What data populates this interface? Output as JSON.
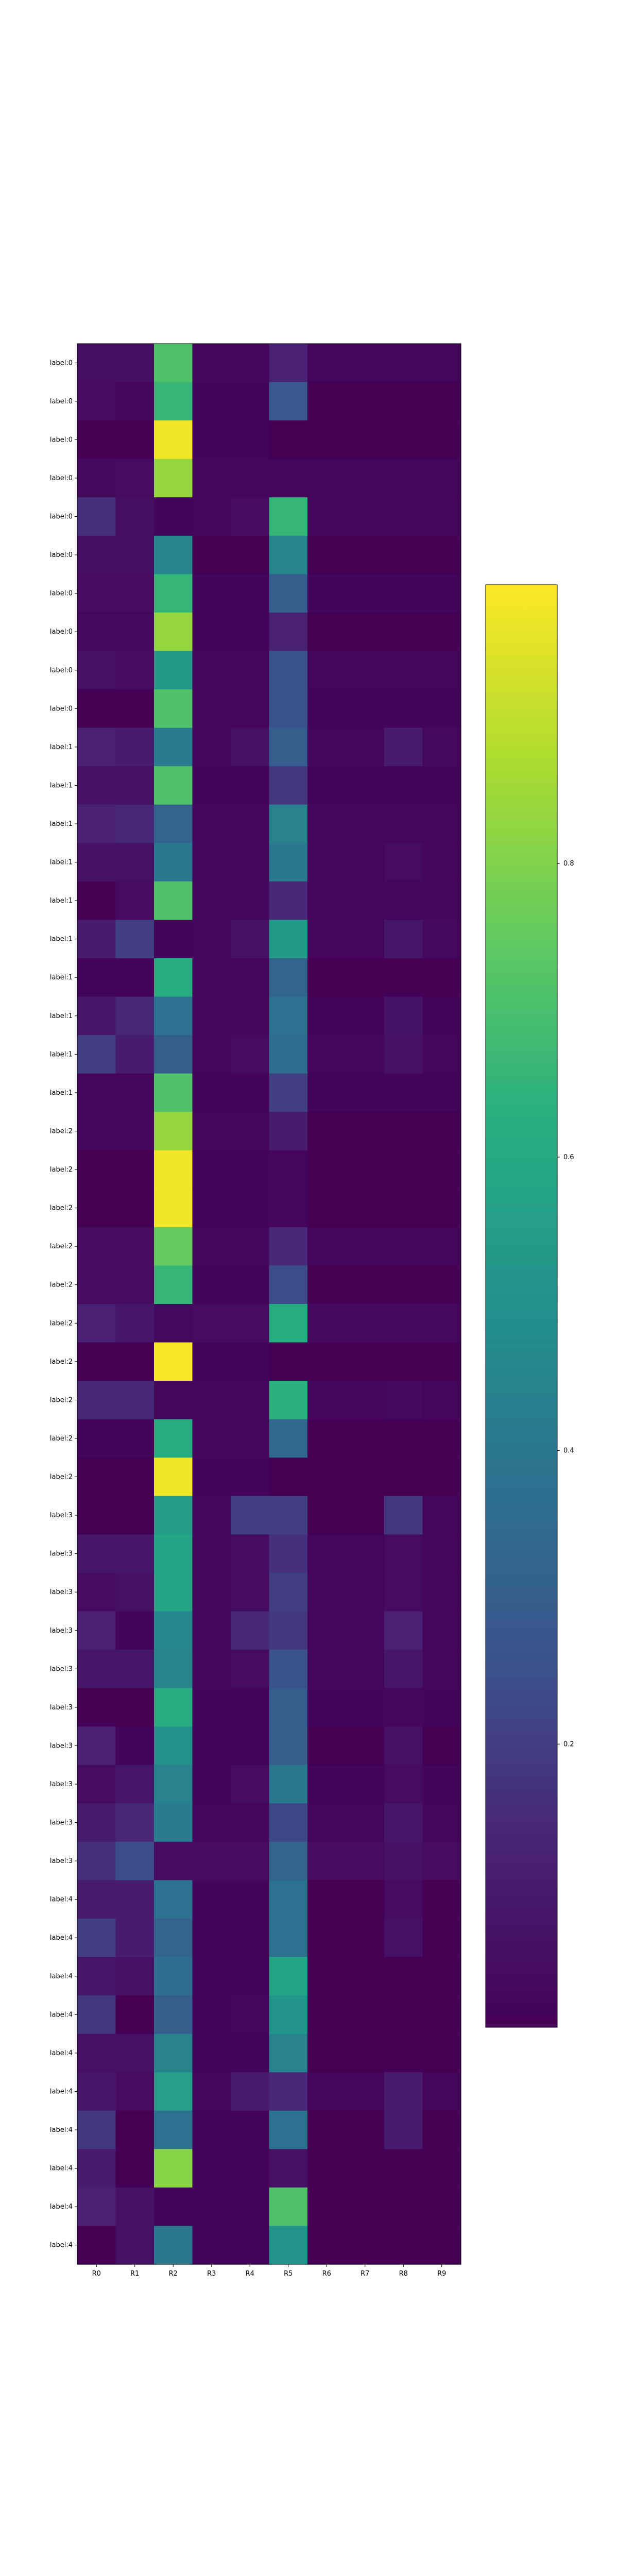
{
  "chart_data": {
    "type": "heatmap",
    "colormap": "viridis",
    "columns": [
      "R0",
      "R1",
      "R2",
      "R3",
      "R4",
      "R5",
      "R6",
      "R7",
      "R8",
      "R9"
    ],
    "row_labels": [
      "label:0",
      "label:0",
      "label:0",
      "label:0",
      "label:0",
      "label:0",
      "label:0",
      "label:0",
      "label:0",
      "label:0",
      "label:1",
      "label:1",
      "label:1",
      "label:1",
      "label:1",
      "label:1",
      "label:1",
      "label:1",
      "label:1",
      "label:1",
      "label:2",
      "label:2",
      "label:2",
      "label:2",
      "label:2",
      "label:2",
      "label:2",
      "label:2",
      "label:2",
      "label:2",
      "label:3",
      "label:3",
      "label:3",
      "label:3",
      "label:3",
      "label:3",
      "label:3",
      "label:3",
      "label:3",
      "label:3",
      "label:4",
      "label:4",
      "label:4",
      "label:4",
      "label:4",
      "label:4",
      "label:4",
      "label:4",
      "label:4",
      "label:4"
    ],
    "values": [
      [
        0.05,
        0.05,
        0.72,
        0.02,
        0.02,
        0.12,
        0.02,
        0.02,
        0.02,
        0.02
      ],
      [
        0.04,
        0.02,
        0.66,
        0.01,
        0.01,
        0.28,
        0.0,
        0.0,
        0.0,
        0.0
      ],
      [
        0.0,
        0.0,
        0.98,
        0.01,
        0.01,
        0.0,
        0.0,
        0.0,
        0.0,
        0.0
      ],
      [
        0.03,
        0.04,
        0.84,
        0.02,
        0.02,
        0.02,
        0.02,
        0.02,
        0.02,
        0.02
      ],
      [
        0.16,
        0.05,
        0.01,
        0.02,
        0.04,
        0.66,
        0.02,
        0.02,
        0.02,
        0.02
      ],
      [
        0.05,
        0.05,
        0.45,
        0.0,
        0.0,
        0.45,
        0.0,
        0.0,
        0.0,
        0.0
      ],
      [
        0.04,
        0.04,
        0.66,
        0.01,
        0.01,
        0.3,
        0.01,
        0.01,
        0.01,
        0.01
      ],
      [
        0.03,
        0.03,
        0.84,
        0.01,
        0.01,
        0.12,
        0.0,
        0.0,
        0.0,
        0.0
      ],
      [
        0.06,
        0.04,
        0.54,
        0.02,
        0.02,
        0.26,
        0.02,
        0.02,
        0.02,
        0.02
      ],
      [
        0.0,
        0.0,
        0.72,
        0.02,
        0.02,
        0.26,
        0.01,
        0.01,
        0.01,
        0.01
      ],
      [
        0.12,
        0.1,
        0.42,
        0.02,
        0.06,
        0.3,
        0.02,
        0.02,
        0.1,
        0.03
      ],
      [
        0.06,
        0.06,
        0.72,
        0.01,
        0.01,
        0.18,
        0.01,
        0.01,
        0.01,
        0.01
      ],
      [
        0.12,
        0.14,
        0.32,
        0.02,
        0.02,
        0.44,
        0.02,
        0.02,
        0.02,
        0.02
      ],
      [
        0.06,
        0.06,
        0.4,
        0.02,
        0.02,
        0.4,
        0.02,
        0.02,
        0.04,
        0.02
      ],
      [
        0.0,
        0.04,
        0.72,
        0.02,
        0.02,
        0.14,
        0.02,
        0.02,
        0.02,
        0.02
      ],
      [
        0.1,
        0.2,
        0.01,
        0.02,
        0.06,
        0.54,
        0.02,
        0.02,
        0.08,
        0.03
      ],
      [
        0.01,
        0.01,
        0.62,
        0.02,
        0.02,
        0.32,
        0.0,
        0.0,
        0.0,
        0.0
      ],
      [
        0.08,
        0.14,
        0.38,
        0.02,
        0.02,
        0.38,
        0.01,
        0.01,
        0.07,
        0.01
      ],
      [
        0.2,
        0.1,
        0.3,
        0.02,
        0.04,
        0.36,
        0.02,
        0.02,
        0.06,
        0.02
      ],
      [
        0.02,
        0.02,
        0.72,
        0.01,
        0.01,
        0.2,
        0.01,
        0.01,
        0.01,
        0.01
      ],
      [
        0.02,
        0.02,
        0.84,
        0.02,
        0.02,
        0.1,
        0.0,
        0.0,
        0.0,
        0.0
      ],
      [
        0.0,
        0.0,
        0.98,
        0.01,
        0.01,
        0.02,
        0.0,
        0.0,
        0.0,
        0.0
      ],
      [
        0.0,
        0.0,
        0.98,
        0.01,
        0.01,
        0.02,
        0.0,
        0.0,
        0.0,
        0.0
      ],
      [
        0.04,
        0.04,
        0.76,
        0.02,
        0.02,
        0.14,
        0.02,
        0.02,
        0.02,
        0.02
      ],
      [
        0.04,
        0.04,
        0.66,
        0.01,
        0.01,
        0.24,
        0.0,
        0.0,
        0.0,
        0.0
      ],
      [
        0.12,
        0.08,
        0.03,
        0.04,
        0.04,
        0.62,
        0.03,
        0.03,
        0.03,
        0.03
      ],
      [
        0.0,
        0.0,
        0.99,
        0.01,
        0.01,
        0.0,
        0.0,
        0.0,
        0.0,
        0.0
      ],
      [
        0.14,
        0.14,
        0.02,
        0.02,
        0.02,
        0.64,
        0.02,
        0.02,
        0.03,
        0.02
      ],
      [
        0.01,
        0.01,
        0.62,
        0.02,
        0.02,
        0.34,
        0.0,
        0.0,
        0.0,
        0.0
      ],
      [
        0.0,
        0.0,
        0.98,
        0.01,
        0.01,
        0.0,
        0.0,
        0.0,
        0.0,
        0.0
      ],
      [
        0.0,
        0.0,
        0.55,
        0.02,
        0.2,
        0.2,
        0.0,
        0.0,
        0.18,
        0.02
      ],
      [
        0.08,
        0.08,
        0.58,
        0.02,
        0.04,
        0.16,
        0.02,
        0.02,
        0.04,
        0.02
      ],
      [
        0.04,
        0.06,
        0.58,
        0.02,
        0.04,
        0.2,
        0.02,
        0.02,
        0.04,
        0.02
      ],
      [
        0.12,
        0.01,
        0.46,
        0.02,
        0.14,
        0.18,
        0.02,
        0.02,
        0.12,
        0.02
      ],
      [
        0.08,
        0.08,
        0.45,
        0.02,
        0.04,
        0.26,
        0.02,
        0.02,
        0.08,
        0.02
      ],
      [
        0.0,
        0.0,
        0.62,
        0.01,
        0.01,
        0.3,
        0.01,
        0.01,
        0.02,
        0.01
      ],
      [
        0.12,
        0.01,
        0.5,
        0.01,
        0.01,
        0.3,
        0.0,
        0.0,
        0.06,
        0.0
      ],
      [
        0.04,
        0.08,
        0.44,
        0.01,
        0.04,
        0.4,
        0.01,
        0.01,
        0.04,
        0.01
      ],
      [
        0.1,
        0.14,
        0.42,
        0.02,
        0.02,
        0.22,
        0.02,
        0.02,
        0.08,
        0.02
      ],
      [
        0.16,
        0.24,
        0.04,
        0.04,
        0.04,
        0.32,
        0.04,
        0.04,
        0.06,
        0.04
      ],
      [
        0.1,
        0.1,
        0.38,
        0.01,
        0.01,
        0.38,
        0.0,
        0.0,
        0.04,
        0.0
      ],
      [
        0.2,
        0.1,
        0.32,
        0.01,
        0.01,
        0.38,
        0.0,
        0.0,
        0.06,
        0.0
      ],
      [
        0.08,
        0.06,
        0.36,
        0.01,
        0.01,
        0.58,
        0.0,
        0.0,
        0.0,
        0.0
      ],
      [
        0.18,
        0.0,
        0.3,
        0.01,
        0.02,
        0.52,
        0.0,
        0.0,
        0.0,
        0.0
      ],
      [
        0.06,
        0.06,
        0.44,
        0.01,
        0.01,
        0.44,
        0.0,
        0.0,
        0.0,
        0.0
      ],
      [
        0.08,
        0.04,
        0.56,
        0.02,
        0.1,
        0.14,
        0.02,
        0.02,
        0.1,
        0.02
      ],
      [
        0.18,
        0.0,
        0.38,
        0.01,
        0.01,
        0.38,
        0.0,
        0.0,
        0.1,
        0.0
      ],
      [
        0.1,
        0.0,
        0.82,
        0.01,
        0.01,
        0.06,
        0.0,
        0.0,
        0.0,
        0.0
      ],
      [
        0.12,
        0.06,
        0.01,
        0.01,
        0.01,
        0.72,
        0.0,
        0.0,
        0.0,
        0.0
      ],
      [
        0.0,
        0.06,
        0.4,
        0.01,
        0.01,
        0.52,
        0.0,
        0.0,
        0.0,
        0.0
      ]
    ],
    "vmin": 0.0,
    "vmax": 1.0,
    "colorbar": {
      "ticks": [
        0.2,
        0.4,
        0.6,
        0.8
      ],
      "tick_labels": [
        "0.2",
        "0.4",
        "0.6",
        "0.8"
      ]
    },
    "title": "",
    "xlabel": "",
    "ylabel": ""
  }
}
